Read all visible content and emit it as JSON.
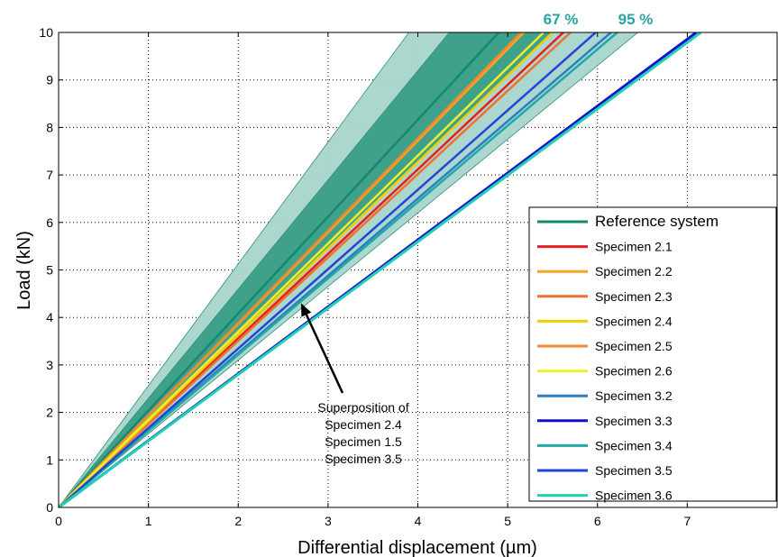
{
  "chart_data": {
    "type": "line",
    "xlabel": "Differential displacement (µm)",
    "ylabel": "Load (kN)",
    "xlim": [
      0,
      8
    ],
    "ylim": [
      0,
      10
    ],
    "xticks": [
      "0",
      "1",
      "2",
      "3",
      "4",
      "5",
      "6",
      "7"
    ],
    "yticks": [
      "0",
      "1",
      "2",
      "3",
      "4",
      "5",
      "6",
      "7",
      "8",
      "9",
      "10"
    ],
    "grid": true,
    "legend_position": "bottom-right",
    "confidence_bands": [
      {
        "label": "67 %",
        "x_at_10kN": [
          4.35,
          5.5
        ],
        "color": "#3a9e86"
      },
      {
        "label": "95 %",
        "x_at_10kN": [
          3.9,
          6.45
        ],
        "color": "#a8d5cb"
      }
    ],
    "series": [
      {
        "name": "Reference system",
        "x_at_10kN": 4.9,
        "color": "#138a6e"
      },
      {
        "name": "Specimen 2.1",
        "x_at_10kN": 5.62,
        "color": "#e62020"
      },
      {
        "name": "Specimen 2.2",
        "x_at_10kN": 5.18,
        "color": "#f5a623"
      },
      {
        "name": "Specimen 2.3",
        "x_at_10kN": 5.7,
        "color": "#f07030"
      },
      {
        "name": "Specimen 2.4",
        "x_at_10kN": 5.5,
        "color": "#f0d000"
      },
      {
        "name": "Specimen 2.5",
        "x_at_10kN": 5.15,
        "color": "#f08a30"
      },
      {
        "name": "Specimen 2.6",
        "x_at_10kN": 5.4,
        "color": "#eeee30"
      },
      {
        "name": "Specimen 3.2",
        "x_at_10kN": 6.15,
        "color": "#2a7fc0"
      },
      {
        "name": "Specimen 3.3",
        "x_at_10kN": 7.1,
        "color": "#1010d0"
      },
      {
        "name": "Specimen 3.4",
        "x_at_10kN": 6.22,
        "color": "#20a8a8"
      },
      {
        "name": "Specimen 3.5",
        "x_at_10kN": 5.98,
        "color": "#2045d8"
      },
      {
        "name": "Specimen 3.6",
        "x_at_10kN": 7.15,
        "color": "#20d0b0"
      }
    ],
    "annotation": {
      "lines": [
        "Superposition of",
        "Specimen 2.4",
        "Specimen 1.5",
        "Specimen 3.5"
      ],
      "arrow_target": {
        "x": 2.7,
        "y": 4.3
      }
    }
  }
}
